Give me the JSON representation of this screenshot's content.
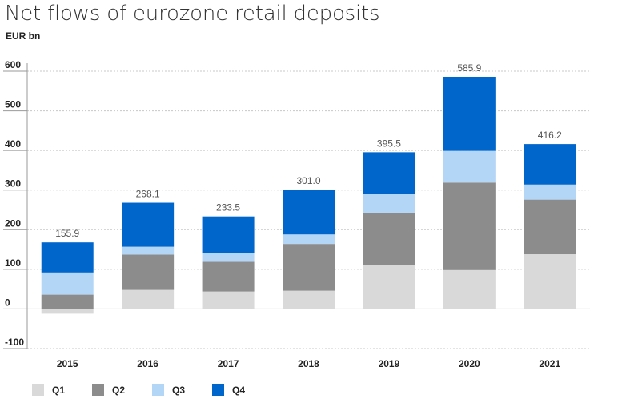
{
  "title": "Net flows of eurozone retail deposits",
  "unit_label": "EUR bn",
  "chart_data": {
    "type": "bar",
    "stacked": true,
    "title": "Net flows of eurozone retail deposits",
    "ylabel": "EUR bn",
    "xlabel": "",
    "ylim": [
      -100,
      600
    ],
    "yticks": [
      -100,
      0,
      100,
      200,
      300,
      400,
      500,
      600
    ],
    "grid": true,
    "legend_position": "bottom-left",
    "categories": [
      "2015",
      "2016",
      "2017",
      "2018",
      "2019",
      "2020",
      "2021"
    ],
    "series": [
      {
        "name": "Q1",
        "color": "#d9d9d9",
        "values": [
          -12,
          48,
          44,
          46,
          110,
          98,
          138
        ]
      },
      {
        "name": "Q2",
        "color": "#8c8c8c",
        "values": [
          36,
          89,
          75,
          118,
          133,
          221,
          138
        ]
      },
      {
        "name": "Q3",
        "color": "#b3d6f7",
        "values": [
          56,
          20,
          22,
          24,
          47,
          80,
          38
        ]
      },
      {
        "name": "Q4",
        "color": "#0066cc",
        "values": [
          75.9,
          111.1,
          92.5,
          113.0,
          105.5,
          186.9,
          102.2
        ]
      }
    ],
    "totals": [
      "155.9",
      "268.1",
      "233.5",
      "301.0",
      "395.5",
      "585.9",
      "416.2"
    ]
  }
}
